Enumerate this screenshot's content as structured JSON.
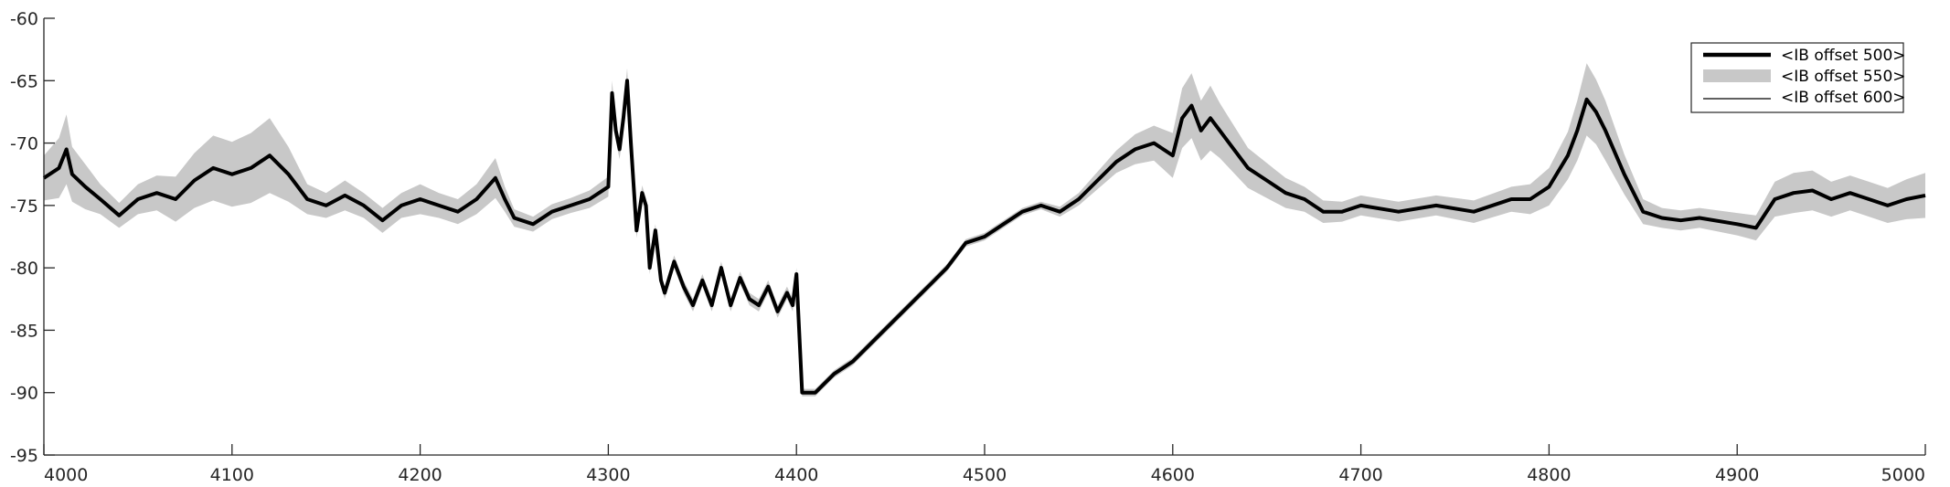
{
  "chart_data": {
    "type": "line",
    "title": "",
    "xlabel": "",
    "ylabel": "",
    "xlim": [
      4000,
      5000
    ],
    "ylim": [
      -95,
      -60
    ],
    "x_ticks": [
      4000,
      4100,
      4200,
      4300,
      4400,
      4500,
      4600,
      4700,
      4800,
      4900,
      5000
    ],
    "y_ticks": [
      -60,
      -65,
      -70,
      -75,
      -80,
      -85,
      -90,
      -95
    ],
    "x_tick_labels": [
      "4000",
      "4100",
      "4200",
      "4300",
      "4400",
      "4500",
      "4600",
      "4700",
      "4800",
      "4900",
      "5000"
    ],
    "y_tick_labels": [
      "-60",
      "-65",
      "-70",
      "-75",
      "-80",
      "-85",
      "-90",
      "-95"
    ],
    "grid": false,
    "legend_position": "top-right",
    "series": [
      {
        "name": "<IB offset 500>",
        "style": "thick-line",
        "color": "#000000",
        "x": [
          4000,
          4008,
          4012,
          4015,
          4022,
          4030,
          4040,
          4050,
          4060,
          4070,
          4080,
          4090,
          4100,
          4110,
          4120,
          4130,
          4140,
          4150,
          4160,
          4170,
          4180,
          4190,
          4200,
          4210,
          4220,
          4230,
          4240,
          4245,
          4250,
          4260,
          4270,
          4280,
          4290,
          4300,
          4302,
          4304,
          4306,
          4308,
          4310,
          4312,
          4315,
          4318,
          4320,
          4322,
          4325,
          4328,
          4330,
          4335,
          4340,
          4345,
          4350,
          4355,
          4360,
          4365,
          4370,
          4375,
          4380,
          4385,
          4390,
          4395,
          4398,
          4400,
          4403,
          4410,
          4420,
          4430,
          4440,
          4450,
          4460,
          4470,
          4480,
          4490,
          4500,
          4510,
          4520,
          4530,
          4540,
          4550,
          4560,
          4570,
          4580,
          4590,
          4600,
          4605,
          4610,
          4615,
          4620,
          4625,
          4630,
          4640,
          4650,
          4660,
          4670,
          4680,
          4690,
          4700,
          4720,
          4740,
          4760,
          4780,
          4790,
          4800,
          4810,
          4815,
          4820,
          4825,
          4830,
          4840,
          4850,
          4860,
          4870,
          4880,
          4900,
          4910,
          4920,
          4930,
          4940,
          4950,
          4960,
          4970,
          4980,
          4990,
          5000
        ],
        "y": [
          -72.8,
          -72.0,
          -70.5,
          -72.5,
          -73.5,
          -74.5,
          -75.8,
          -74.5,
          -74.0,
          -74.5,
          -73.0,
          -72.0,
          -72.5,
          -72.0,
          -71.0,
          -72.5,
          -74.5,
          -75.0,
          -74.2,
          -75.0,
          -76.2,
          -75.0,
          -74.5,
          -75.0,
          -75.5,
          -74.5,
          -72.8,
          -74.5,
          -76.0,
          -76.5,
          -75.5,
          -75.0,
          -74.5,
          -73.5,
          -66.0,
          -69.0,
          -70.5,
          -68.0,
          -65.0,
          -70.0,
          -77.0,
          -74.0,
          -75.0,
          -80.0,
          -77.0,
          -81.0,
          -82.0,
          -79.5,
          -81.5,
          -83.0,
          -81.0,
          -83.0,
          -80.0,
          -83.0,
          -80.8,
          -82.5,
          -83.0,
          -81.5,
          -83.5,
          -82.0,
          -83.0,
          -80.5,
          -90.0,
          -90.0,
          -88.5,
          -87.5,
          -86.0,
          -84.5,
          -83.0,
          -81.5,
          -80.0,
          -78.0,
          -77.5,
          -76.5,
          -75.5,
          -75.0,
          -75.5,
          -74.5,
          -73.0,
          -71.5,
          -70.5,
          -70.0,
          -71.0,
          -68.0,
          -67.0,
          -69.0,
          -68.0,
          -69.0,
          -70.0,
          -72.0,
          -73.0,
          -74.0,
          -74.5,
          -75.5,
          -75.5,
          -75.0,
          -75.5,
          -75.0,
          -75.5,
          -74.5,
          -74.5,
          -73.5,
          -71.0,
          -69.0,
          -66.5,
          -67.5,
          -69.0,
          -72.5,
          -75.5,
          -76.0,
          -76.2,
          -76.0,
          -76.5,
          -76.8,
          -74.5,
          -74.0,
          -73.8,
          -74.5,
          -74.0,
          -74.5,
          -75.0,
          -74.5,
          -74.2
        ]
      },
      {
        "name": "<IB offset 550>",
        "style": "band",
        "color": "#c8c8c8",
        "x": [
          4000,
          4008,
          4012,
          4015,
          4022,
          4030,
          4040,
          4050,
          4060,
          4070,
          4080,
          4090,
          4100,
          4110,
          4120,
          4130,
          4140,
          4150,
          4160,
          4170,
          4180,
          4190,
          4200,
          4210,
          4220,
          4230,
          4240,
          4245,
          4250,
          4260,
          4270,
          4280,
          4290,
          4300,
          4302,
          4304,
          4306,
          4308,
          4310,
          4312,
          4315,
          4318,
          4320,
          4322,
          4325,
          4328,
          4330,
          4335,
          4340,
          4345,
          4350,
          4355,
          4360,
          4365,
          4370,
          4375,
          4380,
          4385,
          4390,
          4395,
          4398,
          4400,
          4403,
          4410,
          4420,
          4430,
          4440,
          4450,
          4460,
          4470,
          4480,
          4490,
          4500,
          4510,
          4520,
          4530,
          4540,
          4550,
          4560,
          4570,
          4580,
          4590,
          4600,
          4605,
          4610,
          4615,
          4620,
          4625,
          4630,
          4640,
          4650,
          4660,
          4670,
          4680,
          4690,
          4700,
          4720,
          4740,
          4760,
          4780,
          4790,
          4800,
          4810,
          4815,
          4820,
          4825,
          4830,
          4840,
          4850,
          4860,
          4870,
          4880,
          4900,
          4910,
          4920,
          4930,
          4940,
          4950,
          4960,
          4970,
          4980,
          4990,
          5000
        ],
        "y": [
          -72.8,
          -72.0,
          -70.5,
          -72.5,
          -73.5,
          -74.5,
          -75.8,
          -74.5,
          -74.0,
          -74.5,
          -73.0,
          -72.0,
          -72.5,
          -72.0,
          -71.0,
          -72.5,
          -74.5,
          -75.0,
          -74.2,
          -75.0,
          -76.2,
          -75.0,
          -74.5,
          -75.0,
          -75.5,
          -74.5,
          -72.8,
          -74.5,
          -76.0,
          -76.5,
          -75.5,
          -75.0,
          -74.5,
          -73.5,
          -66.0,
          -69.0,
          -70.5,
          -68.0,
          -65.0,
          -70.0,
          -77.0,
          -74.0,
          -75.0,
          -80.0,
          -77.0,
          -81.0,
          -82.0,
          -79.5,
          -81.5,
          -83.0,
          -81.0,
          -83.0,
          -80.0,
          -83.0,
          -80.8,
          -82.5,
          -83.0,
          -81.5,
          -83.5,
          -82.0,
          -83.0,
          -80.5,
          -90.0,
          -90.0,
          -88.5,
          -87.5,
          -86.0,
          -84.5,
          -83.0,
          -81.5,
          -80.0,
          -78.0,
          -77.5,
          -76.5,
          -75.5,
          -75.0,
          -75.5,
          -74.5,
          -73.0,
          -71.5,
          -70.5,
          -70.0,
          -71.0,
          -68.0,
          -67.0,
          -69.0,
          -68.0,
          -69.0,
          -70.0,
          -72.0,
          -73.0,
          -74.0,
          -74.5,
          -75.5,
          -75.5,
          -75.0,
          -75.5,
          -75.0,
          -75.5,
          -74.5,
          -74.5,
          -73.5,
          -71.0,
          -69.0,
          -66.5,
          -67.5,
          -69.0,
          -72.5,
          -75.5,
          -76.0,
          -76.2,
          -76.0,
          -76.5,
          -76.8,
          -74.5,
          -74.0,
          -73.8,
          -74.5,
          -74.0,
          -74.5,
          -75.0,
          -74.5,
          -74.2
        ],
        "spread": [
          1.8,
          2.4,
          2.8,
          2.2,
          1.8,
          1.2,
          1.0,
          1.2,
          1.4,
          1.8,
          2.2,
          2.6,
          2.6,
          2.8,
          3.0,
          2.2,
          1.2,
          1.0,
          1.2,
          1.0,
          1.0,
          1.0,
          1.2,
          1.0,
          1.0,
          1.2,
          1.6,
          1.0,
          0.7,
          0.6,
          0.6,
          0.6,
          0.7,
          0.8,
          1.0,
          0.8,
          0.8,
          0.8,
          1.0,
          0.8,
          0.6,
          0.6,
          0.6,
          0.5,
          0.5,
          0.5,
          0.5,
          0.5,
          0.5,
          0.5,
          0.5,
          0.5,
          0.5,
          0.5,
          0.5,
          0.5,
          0.5,
          0.5,
          0.5,
          0.5,
          0.5,
          0.5,
          0.3,
          0.3,
          0.3,
          0.3,
          0.3,
          0.3,
          0.3,
          0.3,
          0.3,
          0.3,
          0.3,
          0.3,
          0.3,
          0.3,
          0.4,
          0.5,
          0.7,
          0.9,
          1.2,
          1.4,
          1.8,
          2.4,
          2.6,
          2.4,
          2.6,
          2.2,
          2.0,
          1.6,
          1.4,
          1.2,
          1.0,
          0.9,
          0.8,
          0.8,
          0.8,
          0.8,
          0.9,
          1.0,
          1.2,
          1.5,
          1.9,
          2.4,
          2.9,
          2.6,
          2.4,
          1.6,
          1.0,
          0.8,
          0.8,
          0.8,
          0.9,
          1.0,
          1.4,
          1.6,
          1.6,
          1.4,
          1.4,
          1.4,
          1.4,
          1.6,
          1.8
        ]
      },
      {
        "name": "<IB offset 600>",
        "style": "thin-line",
        "color": "#000000",
        "x": [
          4000,
          4008,
          4012,
          4015,
          4022,
          4030,
          4040,
          4050,
          4060,
          4070,
          4080,
          4090,
          4100,
          4110,
          4120,
          4130,
          4140,
          4150,
          4160,
          4170,
          4180,
          4190,
          4200,
          4210,
          4220,
          4230,
          4240,
          4245,
          4250,
          4260,
          4270,
          4280,
          4290,
          4300,
          4302,
          4304,
          4306,
          4308,
          4310,
          4312,
          4315,
          4318,
          4320,
          4322,
          4325,
          4328,
          4330,
          4335,
          4340,
          4345,
          4350,
          4355,
          4360,
          4365,
          4370,
          4375,
          4380,
          4385,
          4390,
          4395,
          4398,
          4400,
          4403,
          4410,
          4420,
          4430,
          4440,
          4450,
          4460,
          4470,
          4480,
          4490,
          4500,
          4510,
          4520,
          4530,
          4540,
          4550,
          4560,
          4570,
          4580,
          4590,
          4600,
          4605,
          4610,
          4615,
          4620,
          4625,
          4630,
          4640,
          4650,
          4660,
          4670,
          4680,
          4690,
          4700,
          4720,
          4740,
          4760,
          4780,
          4790,
          4800,
          4810,
          4815,
          4820,
          4825,
          4830,
          4840,
          4850,
          4860,
          4870,
          4880,
          4900,
          4910,
          4920,
          4930,
          4940,
          4950,
          4960,
          4970,
          4980,
          4990,
          5000
        ],
        "y": [
          -72.8,
          -72.0,
          -70.5,
          -72.5,
          -73.5,
          -74.5,
          -75.8,
          -74.5,
          -74.0,
          -74.5,
          -73.0,
          -72.0,
          -72.5,
          -72.0,
          -71.0,
          -72.5,
          -74.5,
          -75.0,
          -74.2,
          -75.0,
          -76.2,
          -75.0,
          -74.5,
          -75.0,
          -75.5,
          -74.5,
          -72.8,
          -74.5,
          -76.0,
          -76.5,
          -75.5,
          -75.0,
          -74.5,
          -73.5,
          -66.0,
          -69.0,
          -70.5,
          -68.0,
          -65.0,
          -70.0,
          -77.0,
          -74.0,
          -75.0,
          -80.0,
          -77.0,
          -81.0,
          -82.0,
          -79.5,
          -81.5,
          -83.0,
          -81.0,
          -83.0,
          -80.0,
          -83.0,
          -80.8,
          -82.5,
          -83.0,
          -81.5,
          -83.5,
          -82.0,
          -83.0,
          -80.5,
          -90.0,
          -90.0,
          -88.5,
          -87.5,
          -86.0,
          -84.5,
          -83.0,
          -81.5,
          -80.0,
          -78.0,
          -77.5,
          -76.5,
          -75.5,
          -75.0,
          -75.5,
          -74.5,
          -73.0,
          -71.5,
          -70.5,
          -70.0,
          -71.0,
          -68.0,
          -67.0,
          -69.0,
          -68.0,
          -69.0,
          -70.0,
          -72.0,
          -73.0,
          -74.0,
          -74.5,
          -75.5,
          -75.5,
          -75.0,
          -75.5,
          -75.0,
          -75.5,
          -74.5,
          -74.5,
          -73.5,
          -71.0,
          -69.0,
          -66.5,
          -67.5,
          -69.0,
          -72.5,
          -75.5,
          -76.0,
          -76.2,
          -76.0,
          -76.5,
          -76.8,
          -74.5,
          -74.0,
          -73.8,
          -74.5,
          -74.0,
          -74.5,
          -75.0,
          -74.5,
          -74.2
        ]
      }
    ]
  }
}
